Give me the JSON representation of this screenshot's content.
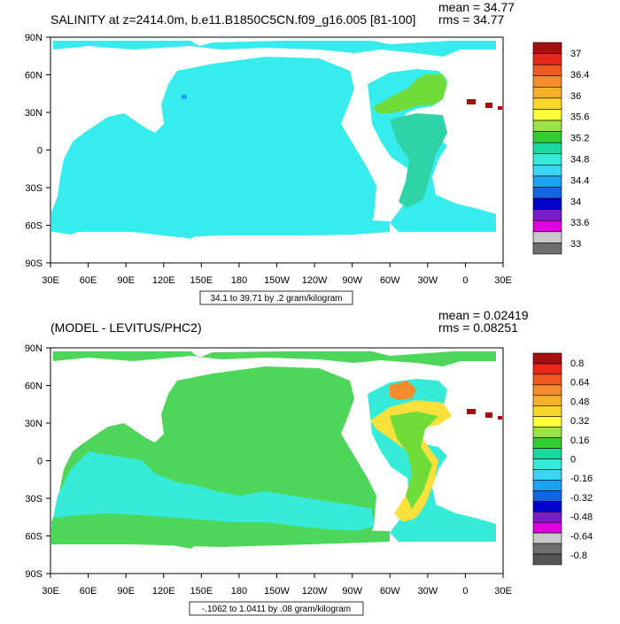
{
  "panels": [
    {
      "title": "SALINITY at z=2414.0m, b.e11.B1850C5CN.f09_g16.005 [81-100]",
      "stats": [
        "mean = 34.77",
        "rms = 34.77"
      ],
      "contour_info": "34.1 to 39.71 by .2 gram/kilogram",
      "lat_labels": [
        "90N",
        "60N",
        "30N",
        "0",
        "30S",
        "60S",
        "90S"
      ],
      "lon_labels": [
        "30E",
        "60E",
        "90E",
        "120E",
        "150E",
        "180",
        "150W",
        "120W",
        "90W",
        "60W",
        "30W",
        "0",
        "30E"
      ],
      "colorbar_labels": [
        "37",
        "36.4",
        "36",
        "35.6",
        "35.2",
        "34.8",
        "34.4",
        "34",
        "33.6",
        "33"
      ],
      "colorbar_colors": [
        "#a50f0f",
        "#e8281a",
        "#f05a20",
        "#f28c2c",
        "#f7b02c",
        "#f9d82b",
        "#ffff3a",
        "#9be24a",
        "#33cc33",
        "#18d9a0",
        "#36ecd8",
        "#3fd4f5",
        "#1aa3f0",
        "#1464e0",
        "#0000cc",
        "#7a1dc9",
        "#e000e0",
        "#c8c8c8",
        "#6e6e6e"
      ]
    },
    {
      "title": "(MODEL - LEVITUS/PHC2)",
      "stats": [
        "mean = 0.02419",
        "rms = 0.08251"
      ],
      "contour_info": "-.1062 to 1.0411 by .08 gram/kilogram",
      "lat_labels": [
        "90N",
        "60N",
        "30N",
        "0",
        "30S",
        "60S",
        "90S"
      ],
      "lon_labels": [
        "30E",
        "60E",
        "90E",
        "120E",
        "150E",
        "180",
        "150W",
        "120W",
        "90W",
        "60W",
        "30W",
        "0",
        "30E"
      ],
      "colorbar_labels": [
        "0.8",
        "0.64",
        "0.48",
        "0.32",
        "0.16",
        "0",
        "-0.16",
        "-0.32",
        "-0.48",
        "-0.64",
        "-0.8"
      ],
      "colorbar_colors": [
        "#a50f0f",
        "#e8281a",
        "#f05a20",
        "#f28c2c",
        "#f7b02c",
        "#f9d82b",
        "#ffff3a",
        "#9be24a",
        "#33cc33",
        "#18d9a0",
        "#36ecd8",
        "#3fd4f5",
        "#1aa3f0",
        "#1464e0",
        "#0000cc",
        "#7a1dc9",
        "#e000e0",
        "#c8c8c8",
        "#6e6e6e",
        "#555555"
      ]
    }
  ]
}
